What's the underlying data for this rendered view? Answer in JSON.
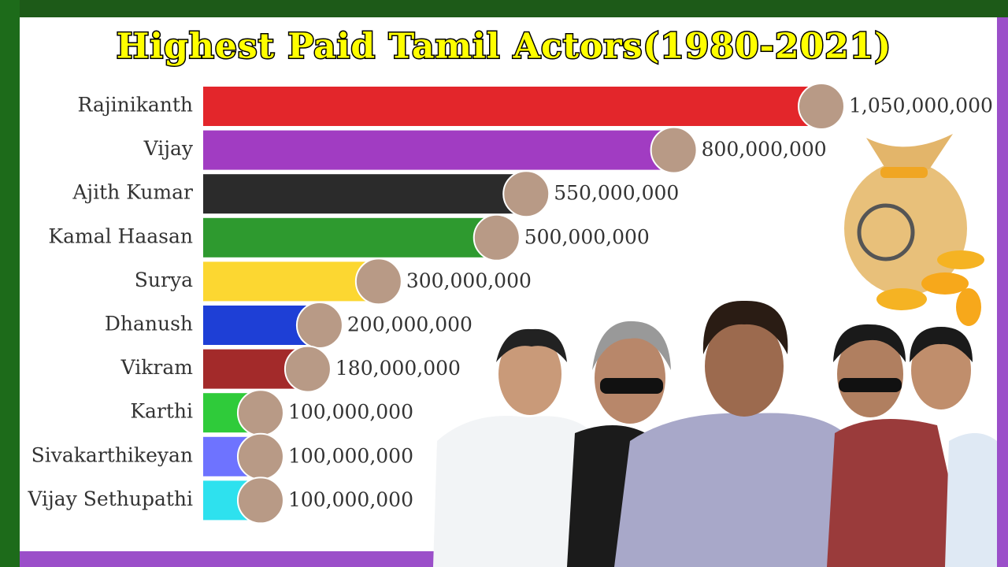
{
  "chart_data": {
    "type": "bar",
    "orientation": "horizontal",
    "title": "Highest Paid Tamil Actors(1980-2021)",
    "categories": [
      "Rajinikanth",
      "Vijay",
      "Ajith Kumar",
      "Kamal Haasan",
      "Surya",
      "Dhanush",
      "Vikram",
      "Karthi",
      "Sivakarthikeyan",
      "Vijay Sethupathi"
    ],
    "values": [
      1050000000,
      800000000,
      550000000,
      500000000,
      300000000,
      200000000,
      180000000,
      100000000,
      100000000,
      100000000
    ],
    "value_labels": [
      "1,050,000,000",
      "800,000,000",
      "550,000,000",
      "500,000,000",
      "300,000,000",
      "200,000,000",
      "180,000,000",
      "100,000,000",
      "100,000,000",
      "100,000,000"
    ],
    "colors": [
      "#e3262b",
      "#a13cc2",
      "#2b2b2b",
      "#2e9a2f",
      "#fcd731",
      "#1e3fd6",
      "#a32a2a",
      "#2fcb3a",
      "#6e73ff",
      "#2ee1ee"
    ],
    "xlim": [
      0,
      1050000000
    ]
  }
}
